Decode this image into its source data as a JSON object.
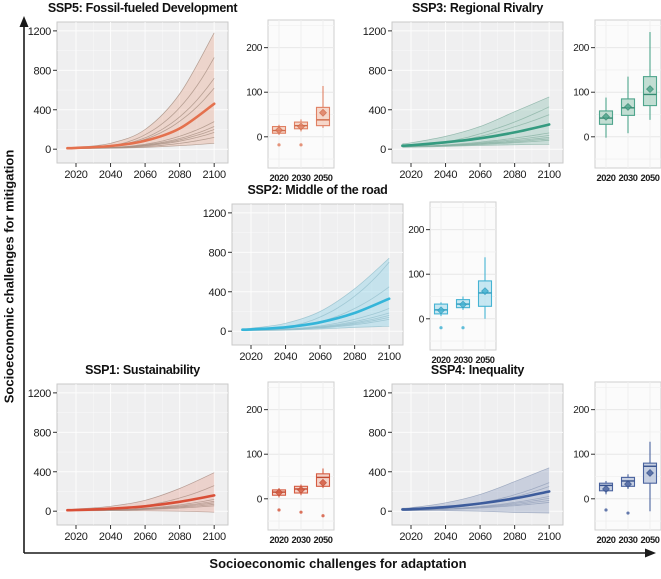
{
  "figure": {
    "y_axis_label": "Socioeconomic challenges for mitigation",
    "x_axis_label": "Socioeconomic challenges for adaptation"
  },
  "chart_data": [
    {
      "id": "ssp5",
      "position": "top-left",
      "type": "line",
      "title": "SSP5: Fossil-fueled Development",
      "x": [
        2015,
        2020,
        2040,
        2060,
        2080,
        2100
      ],
      "x_ticks": [
        2020,
        2040,
        2060,
        2080,
        2100
      ],
      "y_ticks": [
        0,
        400,
        800,
        1200
      ],
      "x_range": [
        2009,
        2108
      ],
      "ylim": [
        -140,
        1290
      ],
      "main_line": [
        10,
        13,
        32,
        85,
        210,
        460
      ],
      "band_upper": [
        16,
        20,
        60,
        200,
        560,
        1180
      ],
      "band_lower": [
        5,
        5,
        10,
        18,
        35,
        60
      ],
      "thin_line_endpoints": [
        930,
        720,
        620,
        280,
        230,
        200,
        170,
        120
      ],
      "thin_line_start": 10,
      "curve_power": 3.0,
      "colors": {
        "line": "#e4714e",
        "band": "rgba(230,150,120,0.30)",
        "thin": "#a58d80",
        "box_border": "#e08063",
        "box_fill": "rgba(243,192,170,0.6)",
        "median": "#cf6a4a"
      },
      "boxplot": {
        "categories": [
          "2020",
          "2030",
          "2050"
        ],
        "y_ticks": [
          0,
          100,
          200
        ],
        "ylim": [
          -70,
          262
        ],
        "boxes": [
          {
            "low": 4,
            "q1": 8,
            "median": 14,
            "q3": 23,
            "high": 27,
            "mean": 15,
            "outliers": [
              -18
            ]
          },
          {
            "low": 12,
            "q1": 18,
            "median": 25,
            "q3": 33,
            "high": 39,
            "mean": 23,
            "outliers": [
              -18
            ]
          },
          {
            "low": 20,
            "q1": 25,
            "median": 38,
            "q3": 66,
            "high": 114,
            "mean": 54,
            "outliers": []
          }
        ]
      }
    },
    {
      "id": "ssp3",
      "position": "top-right",
      "type": "line",
      "title": "SSP3: Regional Rivalry",
      "x": [
        2015,
        2020,
        2040,
        2060,
        2080,
        2100
      ],
      "x_ticks": [
        2020,
        2040,
        2060,
        2080,
        2100
      ],
      "y_ticks": [
        0,
        400,
        800,
        1200
      ],
      "x_range": [
        2009,
        2108
      ],
      "ylim": [
        -140,
        1290
      ],
      "main_line": [
        35,
        40,
        70,
        110,
        170,
        250
      ],
      "band_upper": [
        55,
        65,
        130,
        230,
        380,
        530
      ],
      "band_lower": [
        18,
        20,
        28,
        38,
        45,
        50
      ],
      "thin_line_endpoints": [
        430,
        350,
        165,
        140,
        120,
        105,
        90
      ],
      "thin_line_start": 28,
      "curve_power": 1.8,
      "colors": {
        "line": "#359b80",
        "band": "rgba(120,185,165,0.32)",
        "thin": "#86b0a2",
        "box_border": "#4fa58c",
        "box_fill": "rgba(156,203,185,0.6)",
        "median": "#358a71"
      },
      "boxplot": {
        "categories": [
          "2020",
          "2030",
          "2050"
        ],
        "y_ticks": [
          0,
          100,
          200
        ],
        "ylim": [
          -70,
          262
        ],
        "boxes": [
          {
            "low": -2,
            "q1": 28,
            "median": 42,
            "q3": 58,
            "high": 88,
            "mean": 45,
            "outliers": []
          },
          {
            "low": 8,
            "q1": 48,
            "median": 65,
            "q3": 85,
            "high": 135,
            "mean": 67,
            "outliers": []
          },
          {
            "low": 38,
            "q1": 70,
            "median": 95,
            "q3": 135,
            "high": 235,
            "mean": 107,
            "outliers": []
          }
        ]
      }
    },
    {
      "id": "ssp2",
      "position": "middle-center",
      "type": "line",
      "title": "SSP2: Middle of the road",
      "x": [
        2015,
        2020,
        2040,
        2060,
        2080,
        2100
      ],
      "x_ticks": [
        2020,
        2040,
        2060,
        2080,
        2100
      ],
      "y_ticks": [
        0,
        400,
        800,
        1200
      ],
      "x_range": [
        2009,
        2108
      ],
      "ylim": [
        -140,
        1290
      ],
      "main_line": [
        15,
        18,
        40,
        90,
        185,
        330
      ],
      "band_upper": [
        25,
        30,
        80,
        200,
        430,
        740
      ],
      "band_lower": [
        5,
        5,
        10,
        22,
        38,
        50
      ],
      "thin_line_endpoints": [
        700,
        450,
        230,
        185,
        160,
        140,
        120
      ],
      "thin_line_start": 12,
      "curve_power": 2.6,
      "colors": {
        "line": "#35b5d9",
        "band": "rgba(130,205,228,0.38)",
        "thin": "#93bfcc",
        "box_border": "#45b3d3",
        "box_fill": "rgba(169,220,236,0.65)",
        "median": "#2f9cbd"
      },
      "boxplot": {
        "categories": [
          "2020",
          "2030",
          "2050"
        ],
        "y_ticks": [
          0,
          100,
          200
        ],
        "ylim": [
          -70,
          262
        ],
        "boxes": [
          {
            "low": 6,
            "q1": 11,
            "median": 20,
            "q3": 33,
            "high": 37,
            "mean": 19,
            "outliers": [
              -20
            ]
          },
          {
            "low": 20,
            "q1": 25,
            "median": 33,
            "q3": 43,
            "high": 50,
            "mean": 32,
            "outliers": [
              -20
            ]
          },
          {
            "low": 0,
            "q1": 28,
            "median": 58,
            "q3": 85,
            "high": 138,
            "mean": 62,
            "outliers": []
          }
        ]
      }
    },
    {
      "id": "ssp1",
      "position": "bottom-left",
      "type": "line",
      "title": "SSP1: Sustainability",
      "x": [
        2015,
        2020,
        2040,
        2060,
        2080,
        2100
      ],
      "x_ticks": [
        2020,
        2040,
        2060,
        2080,
        2100
      ],
      "y_ticks": [
        0,
        400,
        800,
        1200
      ],
      "x_range": [
        2009,
        2108
      ],
      "ylim": [
        -140,
        1290
      ],
      "main_line": [
        10,
        12,
        25,
        50,
        95,
        160
      ],
      "band_upper": [
        18,
        22,
        50,
        110,
        230,
        390
      ],
      "band_lower": [
        3,
        3,
        5,
        4,
        0,
        -10
      ],
      "thin_line_endpoints": [
        260,
        120,
        100,
        85,
        70,
        55
      ],
      "thin_line_start": 8,
      "curve_power": 2.6,
      "colors": {
        "line": "#d94f37",
        "band": "rgba(225,140,120,0.30)",
        "thin": "#a98c82",
        "box_border": "#d55b41",
        "box_fill": "rgba(239,179,162,0.55)",
        "median": "#c14a31"
      },
      "boxplot": {
        "categories": [
          "2020",
          "2030",
          "2050"
        ],
        "y_ticks": [
          0,
          100,
          200
        ],
        "ylim": [
          -70,
          262
        ],
        "boxes": [
          {
            "low": 3,
            "q1": 8,
            "median": 15,
            "q3": 20,
            "high": 24,
            "mean": 14,
            "outliers": [
              -25
            ]
          },
          {
            "low": 8,
            "q1": 13,
            "median": 22,
            "q3": 28,
            "high": 32,
            "mean": 20,
            "outliers": [
              -30
            ]
          },
          {
            "low": 24,
            "q1": 28,
            "median": 48,
            "q3": 56,
            "high": 68,
            "mean": 36,
            "outliers": [
              -38
            ]
          }
        ]
      }
    },
    {
      "id": "ssp4",
      "position": "bottom-right",
      "type": "line",
      "title": "SSP4: Inequality",
      "x": [
        2015,
        2020,
        2040,
        2060,
        2080,
        2100
      ],
      "x_ticks": [
        2020,
        2040,
        2060,
        2080,
        2100
      ],
      "y_ticks": [
        0,
        400,
        800,
        1200
      ],
      "x_range": [
        2009,
        2108
      ],
      "ylim": [
        -140,
        1290
      ],
      "main_line": [
        18,
        20,
        42,
        78,
        130,
        200
      ],
      "band_upper": [
        30,
        35,
        85,
        170,
        300,
        440
      ],
      "band_lower": [
        5,
        5,
        6,
        0,
        -12,
        -18
      ],
      "thin_line_endpoints": [
        290,
        250,
        150,
        130,
        110,
        90
      ],
      "thin_line_start": 14,
      "curve_power": 2.2,
      "colors": {
        "line": "#3d5c9c",
        "band": "rgba(140,155,190,0.38)",
        "thin": "#909db8",
        "box_border": "#4a639f",
        "box_fill": "rgba(170,184,212,0.65)",
        "median": "#35508c"
      },
      "boxplot": {
        "categories": [
          "2020",
          "2030",
          "2050"
        ],
        "y_ticks": [
          0,
          100,
          200
        ],
        "ylim": [
          -70,
          262
        ],
        "boxes": [
          {
            "low": 10,
            "q1": 18,
            "median": 30,
            "q3": 35,
            "high": 40,
            "mean": 22,
            "outliers": [
              -25
            ]
          },
          {
            "low": 22,
            "q1": 28,
            "median": 40,
            "q3": 48,
            "high": 55,
            "mean": 33,
            "outliers": [
              -32
            ]
          },
          {
            "low": -28,
            "q1": 35,
            "median": 73,
            "q3": 80,
            "high": 128,
            "mean": 58,
            "outliers": []
          }
        ]
      }
    }
  ]
}
